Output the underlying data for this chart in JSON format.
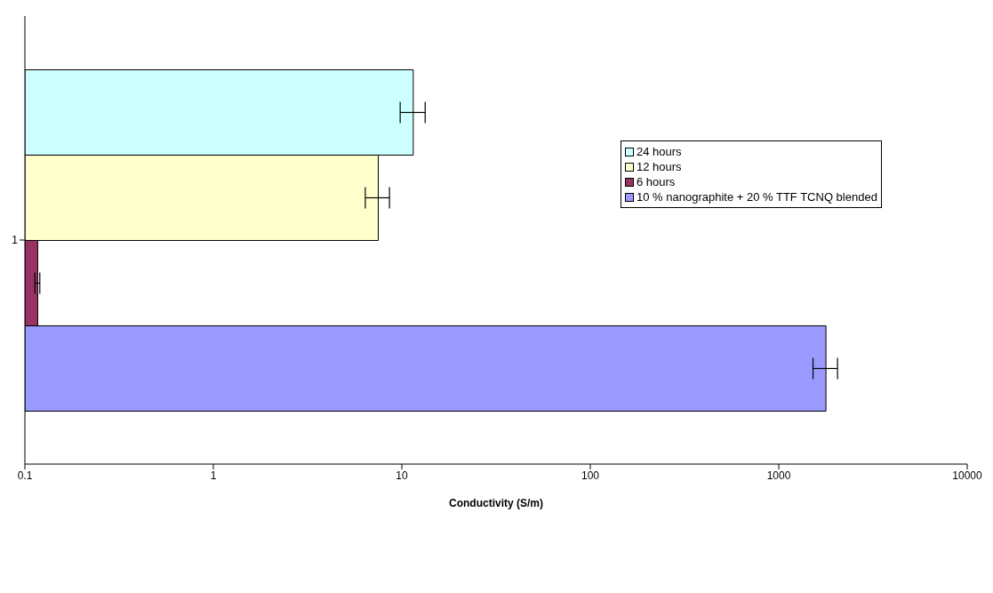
{
  "chart_data": {
    "type": "bar",
    "orientation": "horizontal",
    "xlabel": "Conductivity (S/m)",
    "categories": [
      "1"
    ],
    "series": [
      {
        "name": "24 hours",
        "color": "#ccffff",
        "values": [
          11.5
        ],
        "errors": [
          [
            9.8,
            13.3
          ]
        ]
      },
      {
        "name": "12 hours",
        "color": "#ffffcc",
        "values": [
          7.5
        ],
        "errors": [
          [
            6.4,
            8.6
          ]
        ]
      },
      {
        "name": "6 hours",
        "color": "#993366",
        "values": [
          0.117
        ],
        "errors": [
          [
            0.113,
            0.12
          ]
        ]
      },
      {
        "name": "10 % nanographite + 20 % TTF TCNQ blended",
        "color": "#9999ff",
        "values": [
          1780
        ],
        "errors": [
          [
            1520,
            2050
          ]
        ]
      }
    ],
    "log": "x",
    "xlim": [
      0.1,
      10000
    ],
    "xticks": [
      0.1,
      1,
      10,
      100,
      1000,
      10000
    ],
    "grid": false,
    "legend": "right"
  }
}
